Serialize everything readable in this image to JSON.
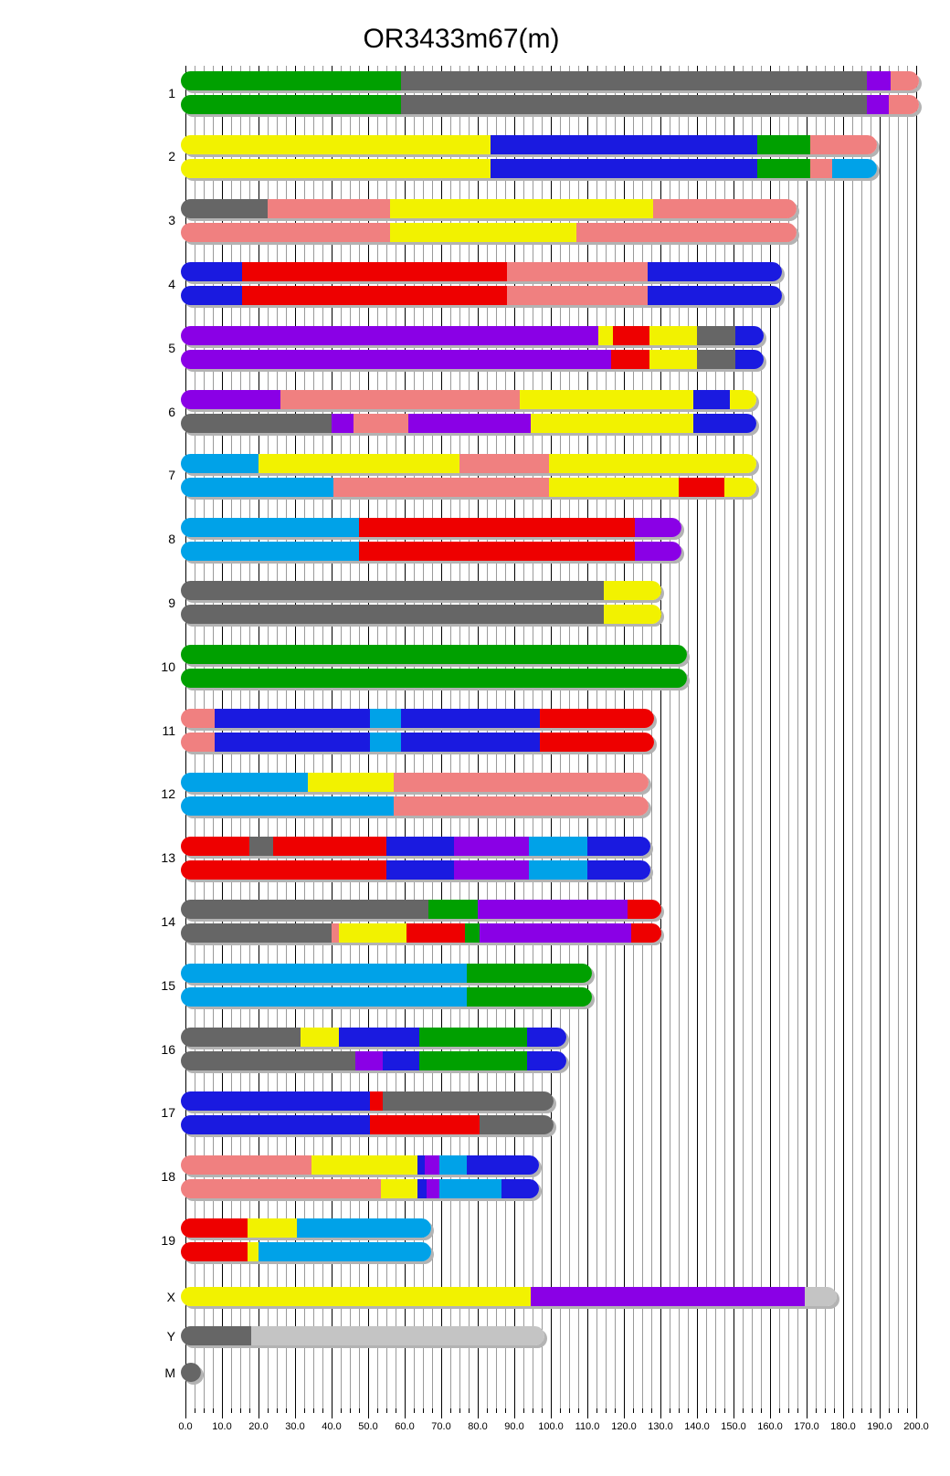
{
  "chart_data": {
    "type": "chromosome-ideogram",
    "title": "OR3433m67(m)",
    "x_axis": {
      "min": 0,
      "max": 200,
      "major_tick": 10,
      "minor_tick": 2.5,
      "tick_labels": [
        "0.0",
        "10.0",
        "20.0",
        "30.0",
        "40.0",
        "50.0",
        "60.0",
        "70.0",
        "80.0",
        "90.0",
        "100.0",
        "110.0",
        "120.0",
        "130.0",
        "140.0",
        "150.0",
        "160.0",
        "170.0",
        "180.0",
        "190.0",
        "200.0"
      ],
      "grid": true
    },
    "colors": {
      "green": "#00A000",
      "gray": "#666666",
      "purple": "#8A00E6",
      "salmon": "#F08080",
      "yellow": "#F2F200",
      "blue": "#1A1AE0",
      "red": "#EE0000",
      "lightblue": "#00A2E8",
      "silver": "#C4C4C4"
    },
    "chromosomes": [
      {
        "label": "1",
        "bars": [
          [
            [
              "green",
              0,
              59
            ],
            [
              "gray",
              59,
              186.5
            ],
            [
              "purple",
              186.5,
              193
            ],
            [
              "salmon",
              193,
              199.5
            ]
          ],
          [
            [
              "green",
              0,
              59
            ],
            [
              "gray",
              59,
              186.5
            ],
            [
              "purple",
              186.5,
              192.5
            ],
            [
              "salmon",
              192.5,
              199.5
            ]
          ]
        ]
      },
      {
        "label": "2",
        "bars": [
          [
            [
              "yellow",
              0,
              83.5
            ],
            [
              "blue",
              83.5,
              156.5
            ],
            [
              "green",
              156.5,
              171
            ],
            [
              "salmon",
              171,
              188
            ]
          ],
          [
            [
              "yellow",
              0,
              83.5
            ],
            [
              "blue",
              83.5,
              156.5
            ],
            [
              "green",
              156.5,
              171
            ],
            [
              "salmon",
              171,
              177
            ],
            [
              "lightblue",
              177,
              188
            ]
          ]
        ]
      },
      {
        "label": "3",
        "bars": [
          [
            [
              "gray",
              0,
              22.5
            ],
            [
              "salmon",
              22.5,
              56
            ],
            [
              "yellow",
              56,
              128
            ],
            [
              "salmon",
              128,
              166
            ]
          ],
          [
            [
              "salmon",
              0,
              56
            ],
            [
              "yellow",
              56,
              107
            ],
            [
              "salmon",
              107,
              166
            ]
          ]
        ]
      },
      {
        "label": "4",
        "bars": [
          [
            [
              "blue",
              0,
              15.5
            ],
            [
              "red",
              15.5,
              88
            ],
            [
              "salmon",
              88,
              126.5
            ],
            [
              "blue",
              126.5,
              162
            ]
          ],
          [
            [
              "blue",
              0,
              15.5
            ],
            [
              "red",
              15.5,
              88
            ],
            [
              "salmon",
              88,
              126.5
            ],
            [
              "blue",
              126.5,
              162
            ]
          ]
        ]
      },
      {
        "label": "5",
        "bars": [
          [
            [
              "purple",
              0,
              113
            ],
            [
              "yellow",
              113,
              117
            ],
            [
              "red",
              117,
              127
            ],
            [
              "yellow",
              127,
              140
            ],
            [
              "gray",
              140,
              150.5
            ],
            [
              "blue",
              150.5,
              157
            ]
          ],
          [
            [
              "purple",
              0,
              116.5
            ],
            [
              "red",
              116.5,
              127
            ],
            [
              "yellow",
              127,
              140
            ],
            [
              "gray",
              140,
              150.5
            ],
            [
              "blue",
              150.5,
              157
            ]
          ]
        ]
      },
      {
        "label": "6",
        "bars": [
          [
            [
              "purple",
              0,
              26
            ],
            [
              "salmon",
              26,
              91.5
            ],
            [
              "yellow",
              91.5,
              139
            ],
            [
              "blue",
              139,
              149
            ],
            [
              "yellow",
              149,
              155
            ]
          ],
          [
            [
              "gray",
              0,
              40
            ],
            [
              "purple",
              40,
              46
            ],
            [
              "salmon",
              46,
              61
            ],
            [
              "purple",
              61,
              94.5
            ],
            [
              "yellow",
              94.5,
              139
            ],
            [
              "blue",
              139,
              155
            ]
          ]
        ]
      },
      {
        "label": "7",
        "bars": [
          [
            [
              "lightblue",
              0,
              20
            ],
            [
              "yellow",
              20,
              75
            ],
            [
              "salmon",
              75,
              99.5
            ],
            [
              "yellow",
              99.5,
              155
            ]
          ],
          [
            [
              "lightblue",
              0,
              40.5
            ],
            [
              "salmon",
              40.5,
              99.5
            ],
            [
              "yellow",
              99.5,
              135
            ],
            [
              "red",
              135,
              147.5
            ],
            [
              "yellow",
              147.5,
              155
            ]
          ]
        ]
      },
      {
        "label": "8",
        "bars": [
          [
            [
              "lightblue",
              0,
              47.5
            ],
            [
              "red",
              47.5,
              123
            ],
            [
              "purple",
              123,
              134.5
            ]
          ],
          [
            [
              "lightblue",
              0,
              47.5
            ],
            [
              "red",
              47.5,
              123
            ],
            [
              "purple",
              123,
              134.5
            ]
          ]
        ]
      },
      {
        "label": "9",
        "bars": [
          [
            [
              "gray",
              0,
              114.5
            ],
            [
              "yellow",
              114.5,
              129
            ]
          ],
          [
            [
              "gray",
              0,
              114.5
            ],
            [
              "yellow",
              114.5,
              129
            ]
          ]
        ]
      },
      {
        "label": "10",
        "bars": [
          [
            [
              "green",
              0,
              136
            ]
          ],
          [
            [
              "green",
              0,
              136
            ]
          ]
        ]
      },
      {
        "label": "11",
        "bars": [
          [
            [
              "salmon",
              0,
              8
            ],
            [
              "blue",
              8,
              50.5
            ],
            [
              "lightblue",
              50.5,
              59
            ],
            [
              "blue",
              59,
              97
            ],
            [
              "red",
              97,
              127
            ]
          ],
          [
            [
              "salmon",
              0,
              8
            ],
            [
              "blue",
              8,
              50.5
            ],
            [
              "lightblue",
              50.5,
              59
            ],
            [
              "blue",
              59,
              97
            ],
            [
              "red",
              97,
              127
            ]
          ]
        ]
      },
      {
        "label": "12",
        "bars": [
          [
            [
              "lightblue",
              0,
              33.5
            ],
            [
              "yellow",
              33.5,
              57
            ],
            [
              "salmon",
              57,
              125.5
            ]
          ],
          [
            [
              "lightblue",
              0,
              57
            ],
            [
              "salmon",
              57,
              125.5
            ]
          ]
        ]
      },
      {
        "label": "13",
        "bars": [
          [
            [
              "red",
              0,
              17.5
            ],
            [
              "gray",
              17.5,
              24
            ],
            [
              "red",
              24,
              55
            ],
            [
              "blue",
              55,
              73.5
            ],
            [
              "purple",
              73.5,
              94
            ],
            [
              "lightblue",
              94,
              110
            ],
            [
              "blue",
              110,
              126
            ]
          ],
          [
            [
              "red",
              0,
              55
            ],
            [
              "blue",
              55,
              73.5
            ],
            [
              "purple",
              73.5,
              94
            ],
            [
              "lightblue",
              94,
              110
            ],
            [
              "blue",
              110,
              126
            ]
          ]
        ]
      },
      {
        "label": "14",
        "bars": [
          [
            [
              "gray",
              0,
              66.5
            ],
            [
              "green",
              66.5,
              80
            ],
            [
              "purple",
              80,
              121
            ],
            [
              "red",
              121,
              129
            ]
          ],
          [
            [
              "gray",
              0,
              40
            ],
            [
              "salmon",
              40,
              42
            ],
            [
              "yellow",
              42,
              60.5
            ],
            [
              "red",
              60.5,
              76.5
            ],
            [
              "green",
              76.5,
              80.5
            ],
            [
              "purple",
              80.5,
              122
            ],
            [
              "red",
              122,
              129
            ]
          ]
        ]
      },
      {
        "label": "15",
        "bars": [
          [
            [
              "lightblue",
              0,
              77
            ],
            [
              "green",
              77,
              110
            ]
          ],
          [
            [
              "lightblue",
              0,
              77
            ],
            [
              "green",
              77,
              110
            ]
          ]
        ]
      },
      {
        "label": "16",
        "bars": [
          [
            [
              "gray",
              0,
              31.5
            ],
            [
              "yellow",
              31.5,
              42
            ],
            [
              "blue",
              42,
              64
            ],
            [
              "green",
              64,
              93.5
            ],
            [
              "blue",
              93.5,
              103
            ]
          ],
          [
            [
              "gray",
              0,
              46.5
            ],
            [
              "purple",
              46.5,
              54
            ],
            [
              "blue",
              54,
              64
            ],
            [
              "green",
              64,
              93.5
            ],
            [
              "blue",
              93.5,
              103
            ]
          ]
        ]
      },
      {
        "label": "17",
        "bars": [
          [
            [
              "blue",
              0,
              50.5
            ],
            [
              "red",
              50.5,
              54
            ],
            [
              "gray",
              54,
              99.5
            ]
          ],
          [
            [
              "blue",
              0,
              50.5
            ],
            [
              "red",
              50.5,
              80.5
            ],
            [
              "gray",
              80.5,
              99.5
            ]
          ]
        ]
      },
      {
        "label": "18",
        "bars": [
          [
            [
              "salmon",
              0,
              34.5
            ],
            [
              "yellow",
              34.5,
              63.5
            ],
            [
              "blue",
              63.5,
              65.5
            ],
            [
              "purple",
              65.5,
              69.5
            ],
            [
              "lightblue",
              69.5,
              77
            ],
            [
              "blue",
              77,
              95.5
            ]
          ],
          [
            [
              "salmon",
              0,
              53.5
            ],
            [
              "yellow",
              53.5,
              63.5
            ],
            [
              "blue",
              63.5,
              66
            ],
            [
              "purple",
              66,
              69.5
            ],
            [
              "lightblue",
              69.5,
              86.5
            ],
            [
              "blue",
              86.5,
              95.5
            ]
          ]
        ]
      },
      {
        "label": "19",
        "bars": [
          [
            [
              "red",
              0,
              17
            ],
            [
              "yellow",
              17,
              30.5
            ],
            [
              "lightblue",
              30.5,
              66
            ]
          ],
          [
            [
              "red",
              0,
              17
            ],
            [
              "yellow",
              17,
              20
            ],
            [
              "lightblue",
              20,
              66
            ]
          ]
        ]
      },
      {
        "label": "X",
        "bars": [
          [
            [
              "yellow",
              0,
              94.5
            ],
            [
              "purple",
              94.5,
              169.5
            ],
            [
              "silver",
              169.5,
              177
            ]
          ]
        ]
      },
      {
        "label": "Y",
        "bars": [
          [
            [
              "gray",
              0,
              18
            ],
            [
              "silver",
              18,
              97
            ]
          ]
        ]
      },
      {
        "label": "M",
        "dot": true,
        "bars": [
          [
            [
              "gray",
              0,
              5
            ]
          ]
        ]
      }
    ]
  }
}
